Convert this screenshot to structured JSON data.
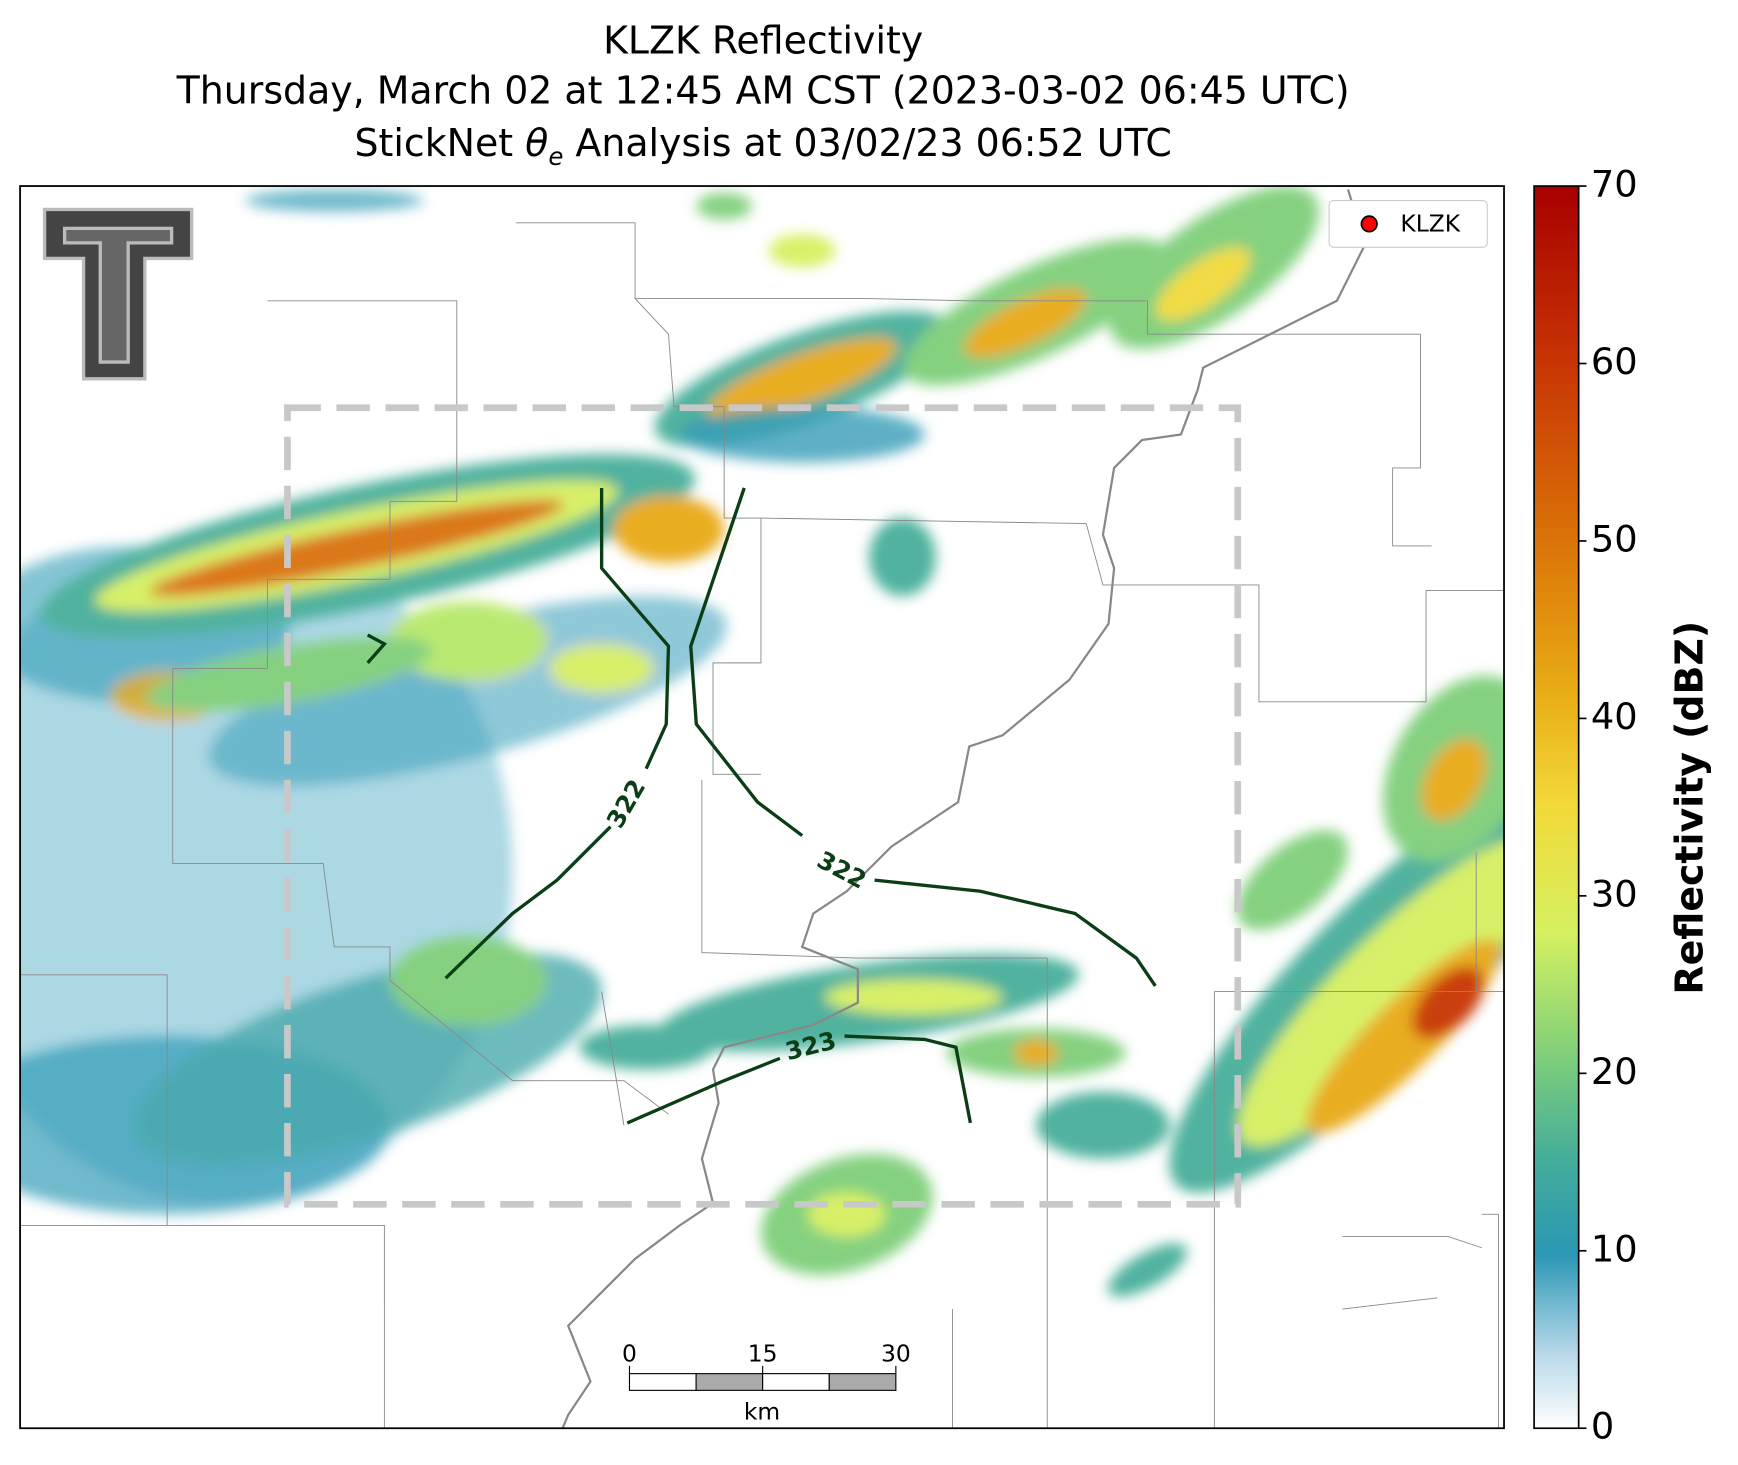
{
  "title": {
    "line1": "KLZK Reflectivity",
    "line2": "Thursday, March 02 at 12:45 AM CST (2023-03-02 06:45 UTC)",
    "line3": [
      "StickNet ",
      "θ",
      "e",
      " Analysis at 03/02/23 06:52 UTC"
    ]
  },
  "legend": {
    "label": "KLZK",
    "color": "#ff0000"
  },
  "contour_labels": [
    "322",
    "322",
    "323"
  ],
  "scale_bar": {
    "ticks": [
      0,
      15,
      30
    ],
    "unit": "km"
  },
  "colorbar": {
    "label": "Reflectivity (dBZ)",
    "lim": [
      0,
      70
    ],
    "ticks": [
      0,
      10,
      20,
      30,
      40,
      50,
      60,
      70
    ]
  }
}
